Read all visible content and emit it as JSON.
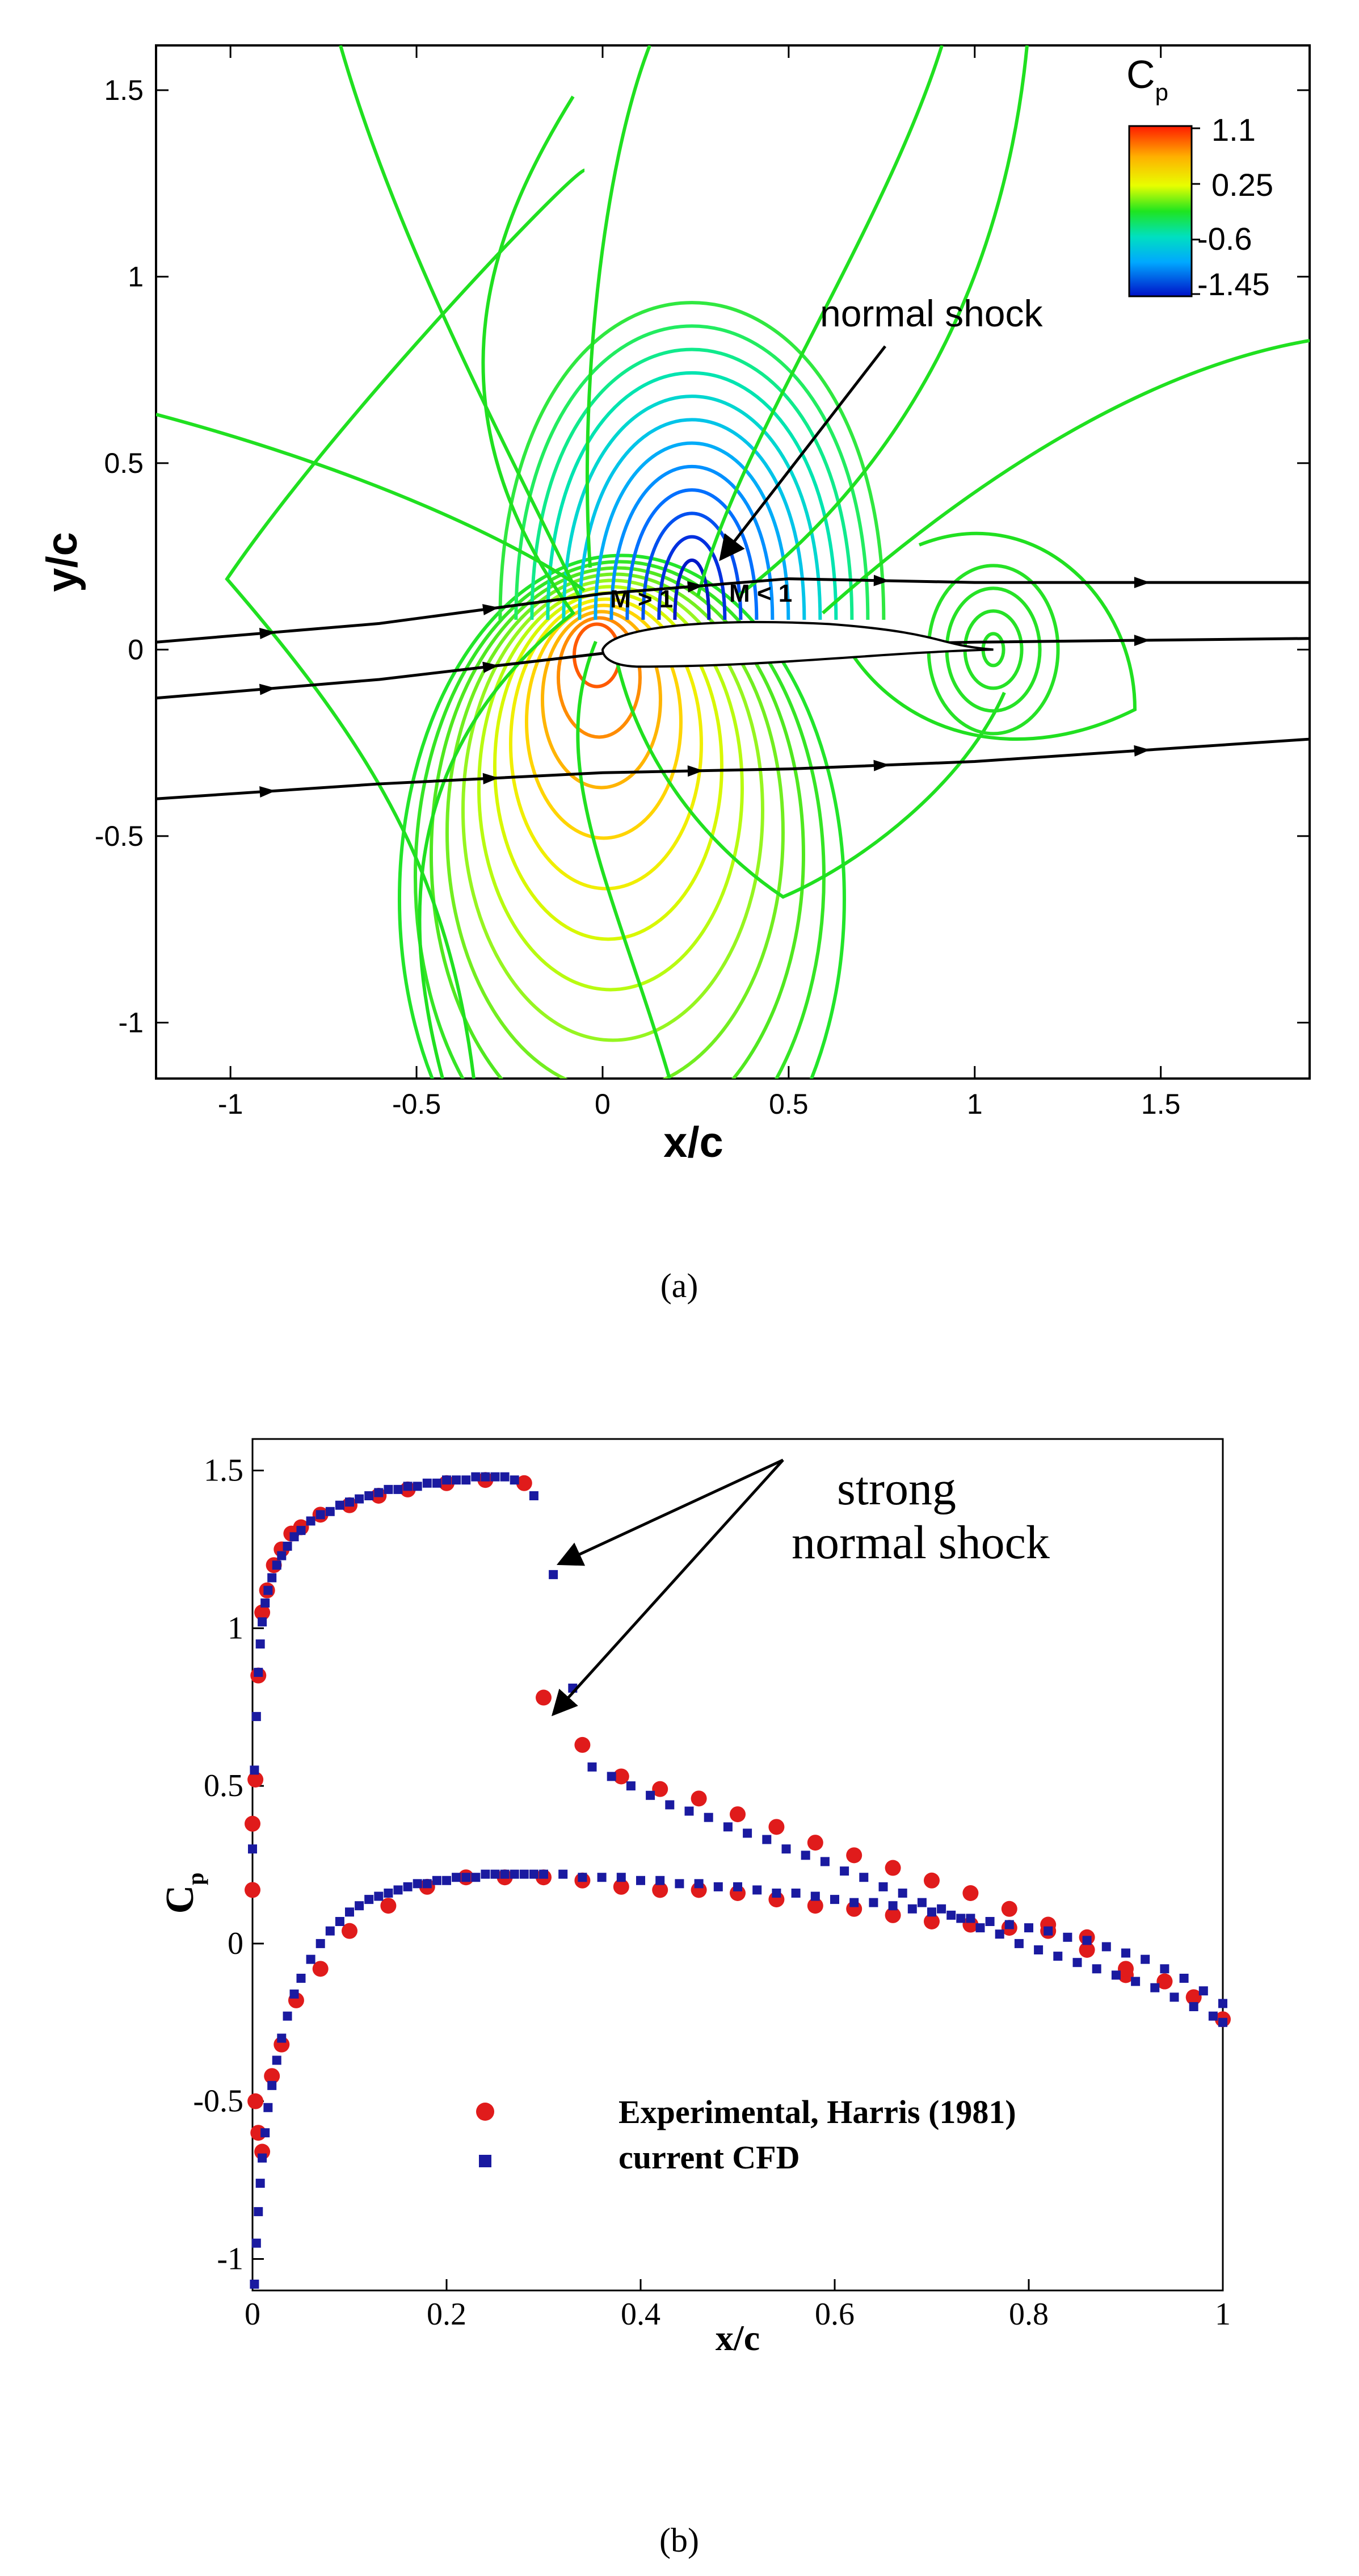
{
  "panel_a": {
    "label": "(a)",
    "xlabel": "x/c",
    "ylabel": "y/c",
    "annotation": "normal shock",
    "region_supersonic": "M > 1",
    "region_subsonic": "M < 1",
    "colorbar": {
      "title": "C",
      "title_sub": "p",
      "ticks": [
        "1.1",
        "0.25",
        "-0.6",
        "-1.45"
      ]
    }
  },
  "panel_b": {
    "label": "(b)",
    "annotation_line1": "strong",
    "annotation_line2": "normal shock",
    "xlabel": "x/c",
    "ylabel": "C",
    "ylabel_sub": "p"
  },
  "chart_data": [
    {
      "type": "contour",
      "title": "",
      "xlabel": "x/c",
      "ylabel": "y/c",
      "xlim": [
        -1.2,
        1.9
      ],
      "ylim": [
        -1.15,
        1.62
      ],
      "xticks": [
        -1,
        -0.5,
        0,
        0.5,
        1,
        1.5
      ],
      "yticks": [
        -1,
        -0.5,
        0,
        0.5,
        1,
        1.5
      ],
      "colorbar": {
        "label": "Cp",
        "min": -1.45,
        "max": 1.1,
        "ticks": [
          1.1,
          0.25,
          -0.6,
          -1.45
        ]
      },
      "streamlines": [
        {
          "name": "",
          "x": [
            -1.2,
            -0.6,
            0,
            0.5,
            1.0,
            1.9
          ],
          "y": [
            0.02,
            0.07,
            0.15,
            0.19,
            0.18,
            0.18
          ]
        },
        {
          "name": "",
          "x": [
            -1.2,
            -0.6,
            0,
            0.5,
            1.0,
            1.9
          ],
          "y": [
            -0.13,
            -0.08,
            -0.01,
            0.01,
            0.02,
            0.03
          ]
        },
        {
          "name": "",
          "x": [
            -1.2,
            -0.6,
            0,
            0.5,
            1.0,
            1.9
          ],
          "y": [
            -0.4,
            -0.36,
            -0.33,
            -0.32,
            -0.3,
            -0.24
          ]
        }
      ]
    },
    {
      "type": "scatter",
      "title": "",
      "xlabel": "x/c",
      "ylabel": "Cp",
      "xlim": [
        0,
        1
      ],
      "ylim": [
        -1.1,
        1.6
      ],
      "xticks": [
        0,
        0.2,
        0.4,
        0.6,
        0.8,
        1
      ],
      "yticks": [
        -1,
        -0.5,
        0,
        0.5,
        1,
        1.5
      ],
      "legend_position": "bottom-left",
      "series": [
        {
          "name": "Experimental, Harris (1981)",
          "color": "#e01b1b",
          "marker": "circle",
          "x": [
            0.0,
            0.003,
            0.006,
            0.01,
            0.015,
            0.022,
            0.03,
            0.04,
            0.05,
            0.07,
            0.1,
            0.13,
            0.16,
            0.2,
            0.24,
            0.28,
            0.3,
            0.34,
            0.38,
            0.42,
            0.46,
            0.5,
            0.54,
            0.58,
            0.62,
            0.66,
            0.7,
            0.74,
            0.78,
            0.82,
            0.86,
            0.9,
            0.94,
            0.97,
            1.0,
            0.0,
            0.003,
            0.006,
            0.01,
            0.02,
            0.03,
            0.045,
            0.07,
            0.1,
            0.14,
            0.18,
            0.22,
            0.26,
            0.3,
            0.34,
            0.38,
            0.42,
            0.46,
            0.5,
            0.54,
            0.58,
            0.62,
            0.66,
            0.7,
            0.74,
            0.78,
            0.82,
            0.86,
            0.9,
            0.94
          ],
          "y": [
            0.38,
            0.52,
            0.85,
            1.05,
            1.12,
            1.2,
            1.25,
            1.3,
            1.32,
            1.36,
            1.39,
            1.42,
            1.44,
            1.46,
            1.47,
            1.46,
            0.78,
            0.63,
            0.53,
            0.49,
            0.46,
            0.41,
            0.37,
            0.32,
            0.28,
            0.24,
            0.2,
            0.16,
            0.11,
            0.06,
            0.02,
            -0.1,
            -0.12,
            -0.17,
            -0.24,
            0.17,
            -0.5,
            -0.6,
            -0.66,
            -0.42,
            -0.32,
            -0.18,
            -0.08,
            0.04,
            0.12,
            0.18,
            0.21,
            0.21,
            0.21,
            0.2,
            0.18,
            0.17,
            0.17,
            0.16,
            0.14,
            0.12,
            0.11,
            0.09,
            0.07,
            0.06,
            0.05,
            0.04,
            -0.02,
            -0.08,
            -0.12
          ]
        },
        {
          "name": "current CFD",
          "color": "#1a1aa0",
          "marker": "square",
          "x": [
            0.0,
            0.002,
            0.004,
            0.006,
            0.008,
            0.01,
            0.013,
            0.016,
            0.02,
            0.025,
            0.03,
            0.036,
            0.043,
            0.05,
            0.06,
            0.07,
            0.08,
            0.09,
            0.1,
            0.11,
            0.12,
            0.13,
            0.14,
            0.15,
            0.16,
            0.17,
            0.18,
            0.19,
            0.2,
            0.21,
            0.22,
            0.23,
            0.24,
            0.25,
            0.26,
            0.27,
            0.29,
            0.31,
            0.33,
            0.35,
            0.37,
            0.39,
            0.41,
            0.43,
            0.45,
            0.47,
            0.49,
            0.51,
            0.53,
            0.55,
            0.57,
            0.59,
            0.61,
            0.63,
            0.65,
            0.67,
            0.69,
            0.71,
            0.73,
            0.75,
            0.77,
            0.79,
            0.81,
            0.83,
            0.85,
            0.87,
            0.89,
            0.91,
            0.93,
            0.95,
            0.97,
            0.99,
            1.0,
            0.002,
            0.004,
            0.006,
            0.008,
            0.01,
            0.013,
            0.016,
            0.02,
            0.025,
            0.03,
            0.036,
            0.043,
            0.05,
            0.06,
            0.07,
            0.08,
            0.09,
            0.1,
            0.11,
            0.12,
            0.13,
            0.14,
            0.15,
            0.16,
            0.17,
            0.18,
            0.19,
            0.2,
            0.21,
            0.22,
            0.23,
            0.24,
            0.25,
            0.26,
            0.27,
            0.28,
            0.29,
            0.3,
            0.32,
            0.34,
            0.36,
            0.38,
            0.4,
            0.42,
            0.44,
            0.46,
            0.48,
            0.5,
            0.52,
            0.54,
            0.56,
            0.58,
            0.6,
            0.62,
            0.64,
            0.66,
            0.68,
            0.7,
            0.72,
            0.74,
            0.76,
            0.78,
            0.8,
            0.82,
            0.84,
            0.86,
            0.88,
            0.9,
            0.92,
            0.94,
            0.96,
            0.98,
            1.0
          ],
          "y": [
            0.3,
            0.55,
            0.72,
            0.86,
            0.95,
            1.02,
            1.08,
            1.12,
            1.16,
            1.2,
            1.23,
            1.26,
            1.29,
            1.31,
            1.34,
            1.36,
            1.37,
            1.39,
            1.4,
            1.41,
            1.42,
            1.43,
            1.44,
            1.44,
            1.45,
            1.45,
            1.46,
            1.46,
            1.47,
            1.47,
            1.47,
            1.48,
            1.48,
            1.48,
            1.48,
            1.47,
            1.42,
            1.17,
            0.81,
            0.56,
            0.53,
            0.5,
            0.47,
            0.44,
            0.42,
            0.4,
            0.37,
            0.35,
            0.33,
            0.3,
            0.28,
            0.26,
            0.23,
            0.21,
            0.18,
            0.16,
            0.13,
            0.11,
            0.08,
            0.05,
            0.03,
            0.0,
            -0.02,
            -0.04,
            -0.06,
            -0.08,
            -0.1,
            -0.12,
            -0.14,
            -0.17,
            -0.2,
            -0.23,
            -0.25,
            -1.08,
            -0.95,
            -0.85,
            -0.76,
            -0.68,
            -0.6,
            -0.52,
            -0.45,
            -0.37,
            -0.3,
            -0.23,
            -0.16,
            -0.11,
            -0.05,
            0.0,
            0.04,
            0.07,
            0.1,
            0.12,
            0.14,
            0.15,
            0.16,
            0.17,
            0.18,
            0.19,
            0.19,
            0.2,
            0.2,
            0.21,
            0.21,
            0.21,
            0.22,
            0.22,
            0.22,
            0.22,
            0.22,
            0.22,
            0.22,
            0.22,
            0.21,
            0.21,
            0.21,
            0.2,
            0.2,
            0.19,
            0.19,
            0.18,
            0.18,
            0.17,
            0.16,
            0.16,
            0.15,
            0.14,
            0.13,
            0.13,
            0.12,
            0.11,
            0.1,
            0.09,
            0.08,
            0.07,
            0.06,
            0.05,
            0.04,
            0.02,
            0.01,
            -0.01,
            -0.03,
            -0.05,
            -0.08,
            -0.11,
            -0.15,
            -0.19
          ]
        }
      ]
    }
  ]
}
